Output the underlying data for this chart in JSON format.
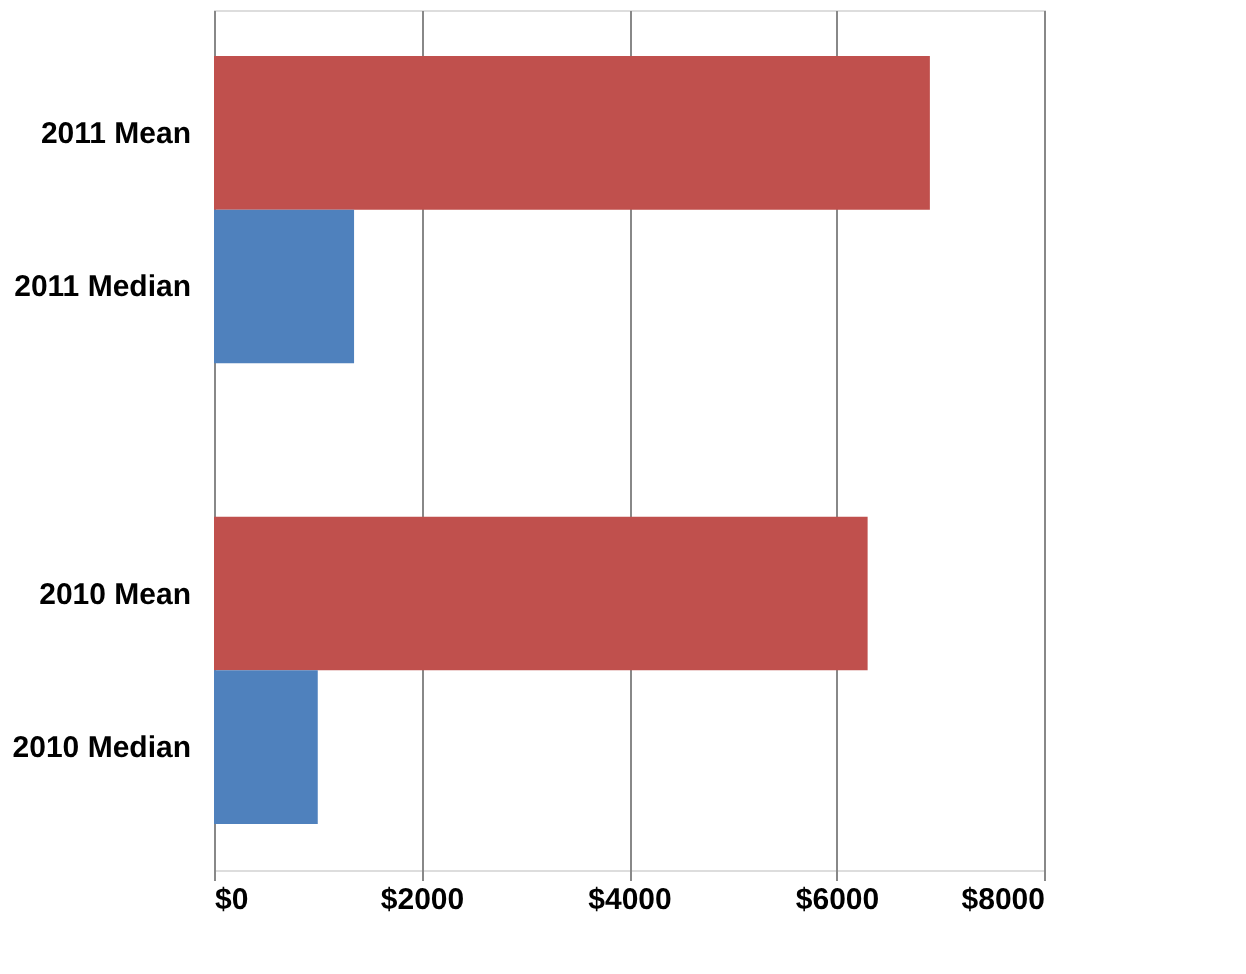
{
  "chart_data": {
    "type": "bar",
    "orientation": "horizontal",
    "categories": [
      "2011 Mean",
      "2011 Median",
      null,
      "2010 Mean",
      "2010 Median"
    ],
    "values": [
      6900,
      1350,
      null,
      6300,
      1000
    ],
    "colors": [
      "#c0504d",
      "#4f81bd",
      null,
      "#c0504d",
      "#4f81bd"
    ],
    "xlim": [
      0,
      8000
    ],
    "xticks": [
      {
        "value": 0,
        "label": "$0"
      },
      {
        "value": 2000,
        "label": "$2000"
      },
      {
        "value": 4000,
        "label": "$4000"
      },
      {
        "value": 6000,
        "label": "$6000"
      },
      {
        "value": 8000,
        "label": "$8000"
      }
    ],
    "grid": "x"
  }
}
